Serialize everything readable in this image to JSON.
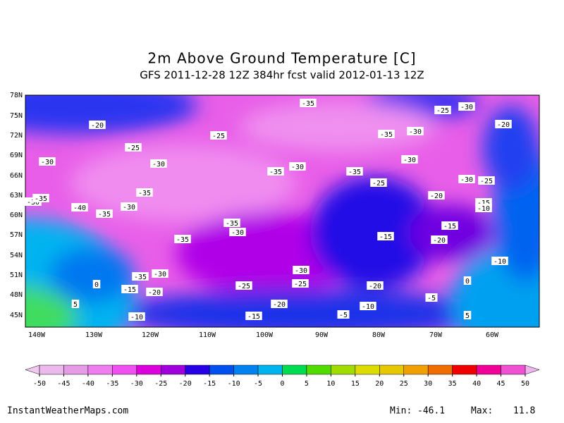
{
  "header": {
    "title": "2m Above Ground Temperature [C]",
    "subtitle": "GFS 2011-12-28 12Z 384hr fcst valid 2012-01-13 12Z"
  },
  "map": {
    "lat_labels": [
      "78N",
      "75N",
      "72N",
      "69N",
      "66N",
      "63N",
      "60N",
      "57N",
      "54N",
      "51N",
      "48N",
      "45N"
    ],
    "lon_labels": [
      "140W",
      "130W",
      "120W",
      "110W",
      "100W",
      "90W",
      "80W",
      "70W",
      "60W"
    ],
    "contour_labels": [
      -35,
      -25,
      -30,
      -20,
      -25,
      -35,
      -30,
      -20,
      -25,
      -30,
      -30,
      -30,
      -35,
      -30,
      -35,
      -25,
      -30,
      -25,
      -35,
      -20,
      -30,
      -35,
      -40,
      -30,
      -15,
      -10,
      -35,
      -35,
      -30,
      -15,
      -35,
      -15,
      -20,
      -10,
      -30,
      -35,
      -30,
      0,
      -25,
      -25,
      -20,
      0,
      -15,
      -20,
      -5,
      5,
      -20,
      -10,
      -5,
      -15,
      -10,
      5
    ]
  },
  "colorbar": {
    "ticks": [
      -50,
      -45,
      -40,
      -35,
      -30,
      -25,
      -20,
      -15,
      -10,
      -5,
      0,
      5,
      10,
      15,
      20,
      25,
      30,
      35,
      40,
      45,
      50
    ],
    "colors": [
      "#f0c8f0",
      "#ebb9eb",
      "#e69be6",
      "#f07df0",
      "#f050f0",
      "#dc00dc",
      "#a000dc",
      "#2800e6",
      "#0050f0",
      "#0082f0",
      "#00b4f0",
      "#00dc50",
      "#50dc00",
      "#a0dc00",
      "#dcdc00",
      "#e6c800",
      "#f0a000",
      "#f06e00",
      "#f00000",
      "#f00096",
      "#f050d2",
      "#f0b4f0"
    ]
  },
  "footer": {
    "site": "InstantWeatherMaps.com",
    "min_label": "Min:",
    "min": -46.1,
    "max_label": "Max:",
    "max": 11.8
  }
}
